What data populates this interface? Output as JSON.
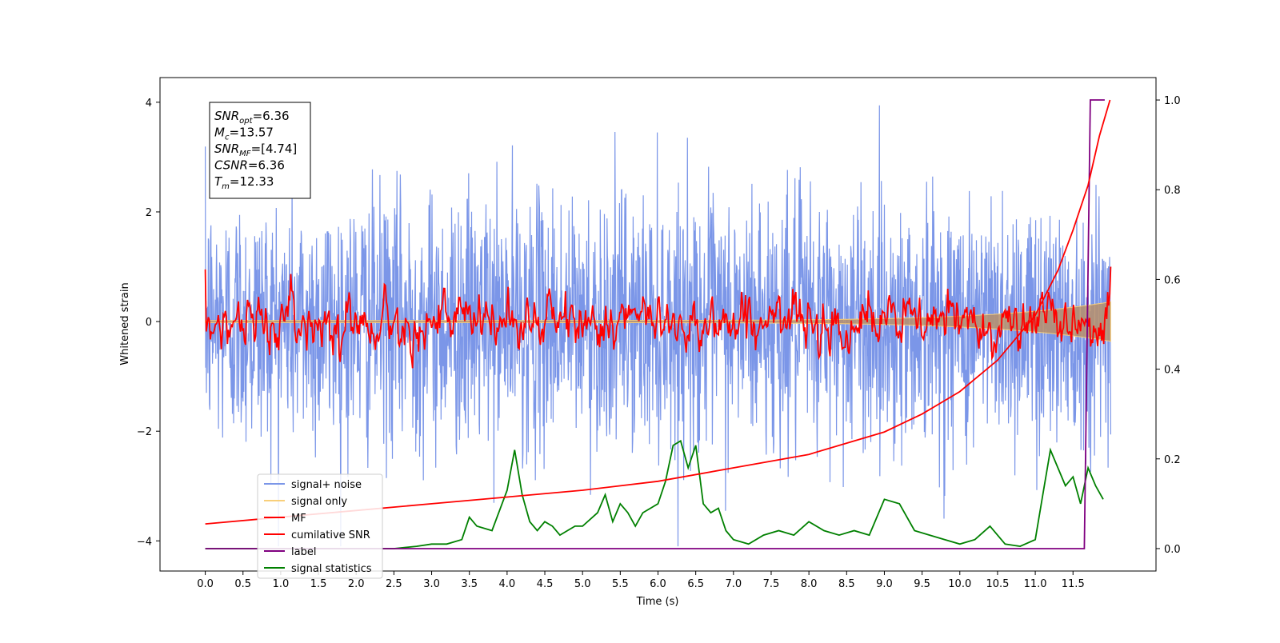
{
  "chart_data": {
    "type": "line",
    "xlabel": "Time (s)",
    "ylabel": "Whitened strain",
    "xlim": [
      -0.6,
      12.6
    ],
    "ylim": [
      -4.55,
      4.45
    ],
    "y2lim": [
      -0.05,
      1.05
    ],
    "x_ticks": [
      "0.0",
      "0.5",
      "1.0",
      "1.5",
      "2.0",
      "2.5",
      "3.0",
      "3.5",
      "4.0",
      "4.5",
      "5.0",
      "5.5",
      "6.0",
      "6.5",
      "7.0",
      "7.5",
      "8.0",
      "8.5",
      "9.0",
      "9.5",
      "10.0",
      "10.5",
      "11.0",
      "11.5"
    ],
    "y_ticks": [
      "4",
      "2",
      "0",
      "−2",
      "−4"
    ],
    "y2_ticks": [
      "1.0",
      "0.8",
      "0.6",
      "0.4",
      "0.2",
      "0.0"
    ],
    "annotation": {
      "lines": [
        {
          "base": "SNR",
          "sub": "opt",
          "value": "=6.36"
        },
        {
          "base": "M",
          "sub": "c",
          "value": "=13.57"
        },
        {
          "base": "SNR",
          "sub": "MF",
          "value": "=[4.74]"
        },
        {
          "base": "CSNR",
          "sub": "",
          "value": "=6.36"
        },
        {
          "base": "T",
          "sub": "m",
          "value": "=12.33"
        }
      ]
    },
    "legend": {
      "placement": "lower-left",
      "entries": [
        {
          "label": "signal+ noise",
          "color": "#7b96e8"
        },
        {
          "label": "signal only",
          "color": "#f8cf7a"
        },
        {
          "label": "MF",
          "color": "#ff0000"
        },
        {
          "label": "cumilative SNR",
          "color": "#ff0000"
        },
        {
          "label": "label",
          "color": "#800080"
        },
        {
          "label": "signal statistics",
          "color": "#008000"
        }
      ]
    },
    "series": [
      {
        "name": "signal statistics",
        "axis": "right",
        "color": "#008000",
        "x": [
          0.0,
          0.5,
          1.0,
          1.5,
          2.0,
          2.5,
          2.8,
          3.0,
          3.2,
          3.4,
          3.5,
          3.6,
          3.8,
          4.0,
          4.1,
          4.2,
          4.3,
          4.4,
          4.5,
          4.6,
          4.7,
          4.8,
          4.9,
          5.0,
          5.2,
          5.3,
          5.4,
          5.5,
          5.6,
          5.7,
          5.8,
          5.9,
          6.0,
          6.1,
          6.2,
          6.3,
          6.4,
          6.5,
          6.6,
          6.7,
          6.8,
          6.9,
          7.0,
          7.2,
          7.4,
          7.6,
          7.8,
          8.0,
          8.2,
          8.4,
          8.6,
          8.8,
          9.0,
          9.2,
          9.4,
          9.6,
          9.8,
          10.0,
          10.2,
          10.4,
          10.5,
          10.6,
          10.8,
          11.0,
          11.1,
          11.2,
          11.3,
          11.4,
          11.5,
          11.6,
          11.7,
          11.8,
          11.9
        ],
        "values": [
          0.0,
          0.0,
          0.0,
          0.0,
          0.0,
          0.0,
          0.005,
          0.01,
          0.01,
          0.02,
          0.07,
          0.05,
          0.04,
          0.13,
          0.22,
          0.12,
          0.06,
          0.04,
          0.06,
          0.05,
          0.03,
          0.04,
          0.05,
          0.05,
          0.08,
          0.12,
          0.06,
          0.1,
          0.08,
          0.05,
          0.08,
          0.09,
          0.1,
          0.15,
          0.23,
          0.24,
          0.18,
          0.23,
          0.1,
          0.08,
          0.09,
          0.04,
          0.02,
          0.01,
          0.03,
          0.04,
          0.03,
          0.06,
          0.04,
          0.03,
          0.04,
          0.03,
          0.11,
          0.1,
          0.04,
          0.03,
          0.02,
          0.01,
          0.02,
          0.05,
          0.03,
          0.01,
          0.005,
          0.02,
          0.12,
          0.22,
          0.18,
          0.14,
          0.16,
          0.1,
          0.18,
          0.14,
          0.11
        ]
      },
      {
        "name": "label",
        "axis": "right",
        "color": "#800080",
        "x": [
          0.0,
          11.65,
          11.73,
          11.92
        ],
        "values": [
          0.0,
          0.0,
          1.0,
          1.0
        ]
      },
      {
        "name": "cumilative SNR",
        "axis": "right",
        "color": "#ff0000",
        "x": [
          0.0,
          1.0,
          2.0,
          3.0,
          4.0,
          5.0,
          6.0,
          7.0,
          8.0,
          9.0,
          9.5,
          10.0,
          10.5,
          11.0,
          11.3,
          11.5,
          11.7,
          11.85,
          11.99
        ],
        "values": [
          0.055,
          0.07,
          0.085,
          0.1,
          0.115,
          0.13,
          0.15,
          0.18,
          0.21,
          0.26,
          0.3,
          0.35,
          0.42,
          0.52,
          0.62,
          0.71,
          0.81,
          0.92,
          1.0
        ]
      }
    ]
  }
}
